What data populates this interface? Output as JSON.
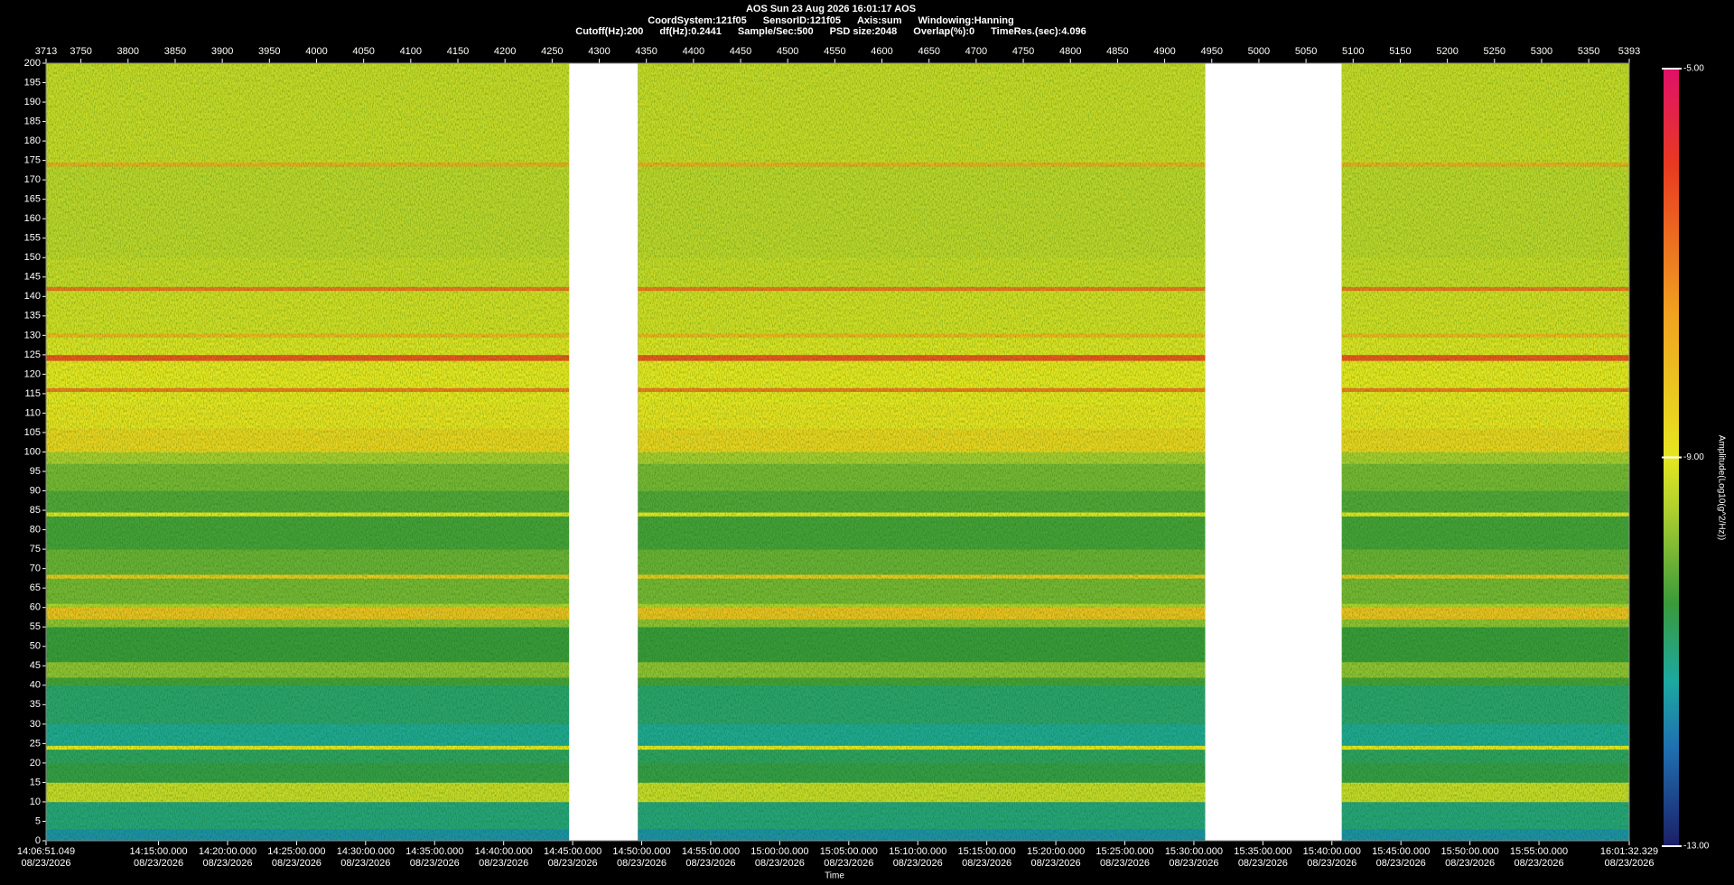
{
  "chart_data": {
    "type": "spectrogram",
    "title": "AOS  Sun 23 Aug 2026 16:01:17  AOS",
    "parameters": [
      [
        "CoordSystem:121f05",
        "SensorID:121f05",
        "Axis:sum",
        "Windowing:Hanning"
      ],
      [
        "Cutoff(Hz):200",
        "df(Hz):0.2441",
        "Sample/Sec:500",
        "PSD size:2048",
        "Overlap(%):0",
        "TimeRes.(sec):4.096"
      ]
    ],
    "x_label": "Time",
    "colorbar_label": "Amplitude(Log10(g^2/Hz))",
    "xlim": [
      50811.049,
      57692.329
    ],
    "xticks": [
      {
        "value": 50811.049,
        "label": "14:06:51.049",
        "date": "08/23/2026"
      },
      {
        "value": 51300,
        "label": "14:15:00.000",
        "date": "08/23/2026"
      },
      {
        "value": 51600,
        "label": "14:20:00.000",
        "date": "08/23/2026"
      },
      {
        "value": 51900,
        "label": "14:25:00.000",
        "date": "08/23/2026"
      },
      {
        "value": 52200,
        "label": "14:30:00.000",
        "date": "08/23/2026"
      },
      {
        "value": 52500,
        "label": "14:35:00.000",
        "date": "08/23/2026"
      },
      {
        "value": 52800,
        "label": "14:40:00.000",
        "date": "08/23/2026"
      },
      {
        "value": 53100,
        "label": "14:45:00.000",
        "date": "08/23/2026"
      },
      {
        "value": 53400,
        "label": "14:50:00.000",
        "date": "08/23/2026"
      },
      {
        "value": 53700,
        "label": "14:55:00.000",
        "date": "08/23/2026"
      },
      {
        "value": 54000,
        "label": "15:00:00.000",
        "date": "08/23/2026"
      },
      {
        "value": 54300,
        "label": "15:05:00.000",
        "date": "08/23/2026"
      },
      {
        "value": 54600,
        "label": "15:10:00.000",
        "date": "08/23/2026"
      },
      {
        "value": 54900,
        "label": "15:15:00.000",
        "date": "08/23/2026"
      },
      {
        "value": 55200,
        "label": "15:20:00.000",
        "date": "08/23/2026"
      },
      {
        "value": 55500,
        "label": "15:25:00.000",
        "date": "08/23/2026"
      },
      {
        "value": 55800,
        "label": "15:30:00.000",
        "date": "08/23/2026"
      },
      {
        "value": 56100,
        "label": "15:35:00.000",
        "date": "08/23/2026"
      },
      {
        "value": 56400,
        "label": "15:40:00.000",
        "date": "08/23/2026"
      },
      {
        "value": 56700,
        "label": "15:45:00.000",
        "date": "08/23/2026"
      },
      {
        "value": 57000,
        "label": "15:50:00.000",
        "date": "08/23/2026"
      },
      {
        "value": 57300,
        "label": "15:55:00.000",
        "date": "08/23/2026"
      },
      {
        "value": 57692.329,
        "label": "16:01:32.329",
        "date": "08/23/2026"
      }
    ],
    "x2lim": [
      3713,
      5393
    ],
    "x2ticks": [
      3713,
      3750,
      3800,
      3850,
      3900,
      3950,
      4000,
      4050,
      4100,
      4150,
      4200,
      4250,
      4300,
      4350,
      4400,
      4450,
      4500,
      4550,
      4600,
      4650,
      4700,
      4750,
      4800,
      4850,
      4900,
      4950,
      5000,
      5050,
      5100,
      5150,
      5200,
      5250,
      5300,
      5350,
      5393
    ],
    "ylim": [
      0,
      200
    ],
    "yticks": [
      0,
      5,
      10,
      15,
      20,
      25,
      30,
      35,
      40,
      45,
      50,
      55,
      60,
      65,
      70,
      75,
      80,
      85,
      90,
      95,
      100,
      105,
      110,
      115,
      120,
      125,
      130,
      135,
      140,
      145,
      150,
      155,
      160,
      165,
      170,
      175,
      180,
      185,
      190,
      195,
      200
    ],
    "gaps": [
      [
        4268,
        4341
      ],
      [
        4943,
        5088
      ]
    ],
    "y_bins": [
      0,
      3,
      10,
      15,
      20,
      23.5,
      24.5,
      30,
      40,
      42,
      46,
      55,
      57,
      60,
      61,
      67.5,
      68.5,
      75,
      83.5,
      84.5,
      90,
      97,
      100,
      106,
      112,
      115.5,
      116.5,
      123.5,
      125,
      129.5,
      130.5,
      141.5,
      142.5,
      150,
      173.5,
      174.5,
      200
    ],
    "z": [
      -11.6,
      -11.0,
      -9.3,
      -10.6,
      -10.8,
      -9.0,
      -11.2,
      -10.9,
      -10.4,
      -9.8,
      -10.5,
      -9.8,
      -8.2,
      -9.5,
      -10.0,
      -8.4,
      -10.1,
      -10.4,
      -9.0,
      -10.3,
      -10.0,
      -9.6,
      -8.6,
      -8.9,
      -9.0,
      -7.0,
      -9.0,
      -6.4,
      -9.1,
      -8.0,
      -9.2,
      -6.9,
      -9.3,
      -9.4,
      -7.8,
      -9.3
    ],
    "zlim": [
      -13,
      -5
    ],
    "zticks": [
      {
        "value": -5,
        "label": "-5.00"
      },
      {
        "value": -9,
        "label": "-9.00"
      },
      {
        "value": -13,
        "label": "-13.00"
      }
    ],
    "colorscale": [
      {
        "value": -13,
        "color": "#1b1f66"
      },
      {
        "value": -12,
        "color": "#1f6fb0"
      },
      {
        "value": -11.3,
        "color": "#1ca9a0"
      },
      {
        "value": -10.5,
        "color": "#3a9a3a"
      },
      {
        "value": -9.6,
        "color": "#a8cc30"
      },
      {
        "value": -9,
        "color": "#e6e620"
      },
      {
        "value": -7.5,
        "color": "#f0a020"
      },
      {
        "value": -6,
        "color": "#e83a20"
      },
      {
        "value": -5,
        "color": "#e0106a"
      }
    ]
  }
}
